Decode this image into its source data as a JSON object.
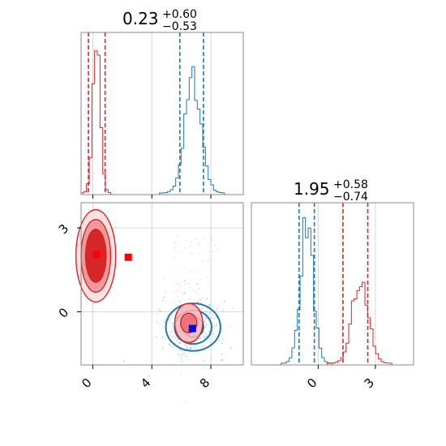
{
  "colors": {
    "blue": "#1f77b4",
    "red": "#d62728",
    "grid": "#cccccc",
    "frame": "#888888",
    "marker_red": "#ff0000",
    "marker_blue": "#0000ff"
  },
  "chart_data": {
    "type": "corner",
    "titles": [
      {
        "value": "0.23",
        "plus": "+0.60",
        "minus": "−0.53"
      },
      {
        "value": "1.95",
        "plus": "+0.58",
        "minus": "−0.74"
      }
    ],
    "grid": true,
    "x_ticks": {
      "values": [
        0,
        4,
        8
      ],
      "labels": [
        "0",
        "4",
        "8"
      ]
    },
    "y_ticks": {
      "values": [
        0,
        3
      ],
      "labels": [
        "0",
        "3"
      ]
    },
    "x2_ticks": {
      "values": [
        0,
        3
      ],
      "labels": [
        "0",
        "3"
      ]
    },
    "xlim": [
      -0.8,
      10.2
    ],
    "ylim": [
      -1.9,
      3.9
    ],
    "x2lim": [
      -3.5,
      5.0
    ],
    "hist_x": {
      "series": [
        {
          "name": "",
          "color": "blue",
          "mean": 6.8,
          "sd": 0.55,
          "peak": 0.7,
          "quantile_lines": [
            5.9,
            7.5
          ]
        },
        {
          "name": "",
          "color": "red",
          "mean": 0.25,
          "sd": 0.25,
          "peak": 0.9,
          "quantile_lines": [
            -0.3,
            0.83
          ]
        }
      ]
    },
    "hist_y": {
      "series": [
        {
          "name": "",
          "color": "blue",
          "mean": -0.6,
          "sd": 0.33,
          "peak": 0.87,
          "quantile_lines": [
            -1.0,
            -0.2
          ]
        },
        {
          "name": "",
          "color": "red",
          "mean": 2.2,
          "sd": 0.42,
          "peak": 0.52,
          "quantile_lines": [
            1.3,
            2.6
          ]
        }
      ]
    },
    "scatter_2d": {
      "red_cluster": {
        "center": [
          0.2,
          2.0
        ],
        "rx": [
          0.7,
          1.0,
          1.35
        ],
        "ry": [
          0.95,
          1.3,
          1.65
        ]
      },
      "blue_cluster": {
        "center": [
          6.8,
          -0.55
        ],
        "rx": [
          0.7,
          1.25,
          1.85
        ],
        "ry": [
          0.35,
          0.6,
          0.85
        ]
      },
      "red_overlay": {
        "center": [
          6.5,
          -0.4
        ],
        "rx": [
          0.55,
          0.95
        ],
        "ry": [
          0.35,
          0.7
        ]
      },
      "markers": [
        {
          "x": 0.25,
          "y": 2.05,
          "color": "marker_red"
        },
        {
          "x": 2.4,
          "y": 1.95,
          "color": "marker_red"
        },
        {
          "x": 6.75,
          "y": -0.6,
          "color": "marker_blue"
        }
      ]
    }
  }
}
